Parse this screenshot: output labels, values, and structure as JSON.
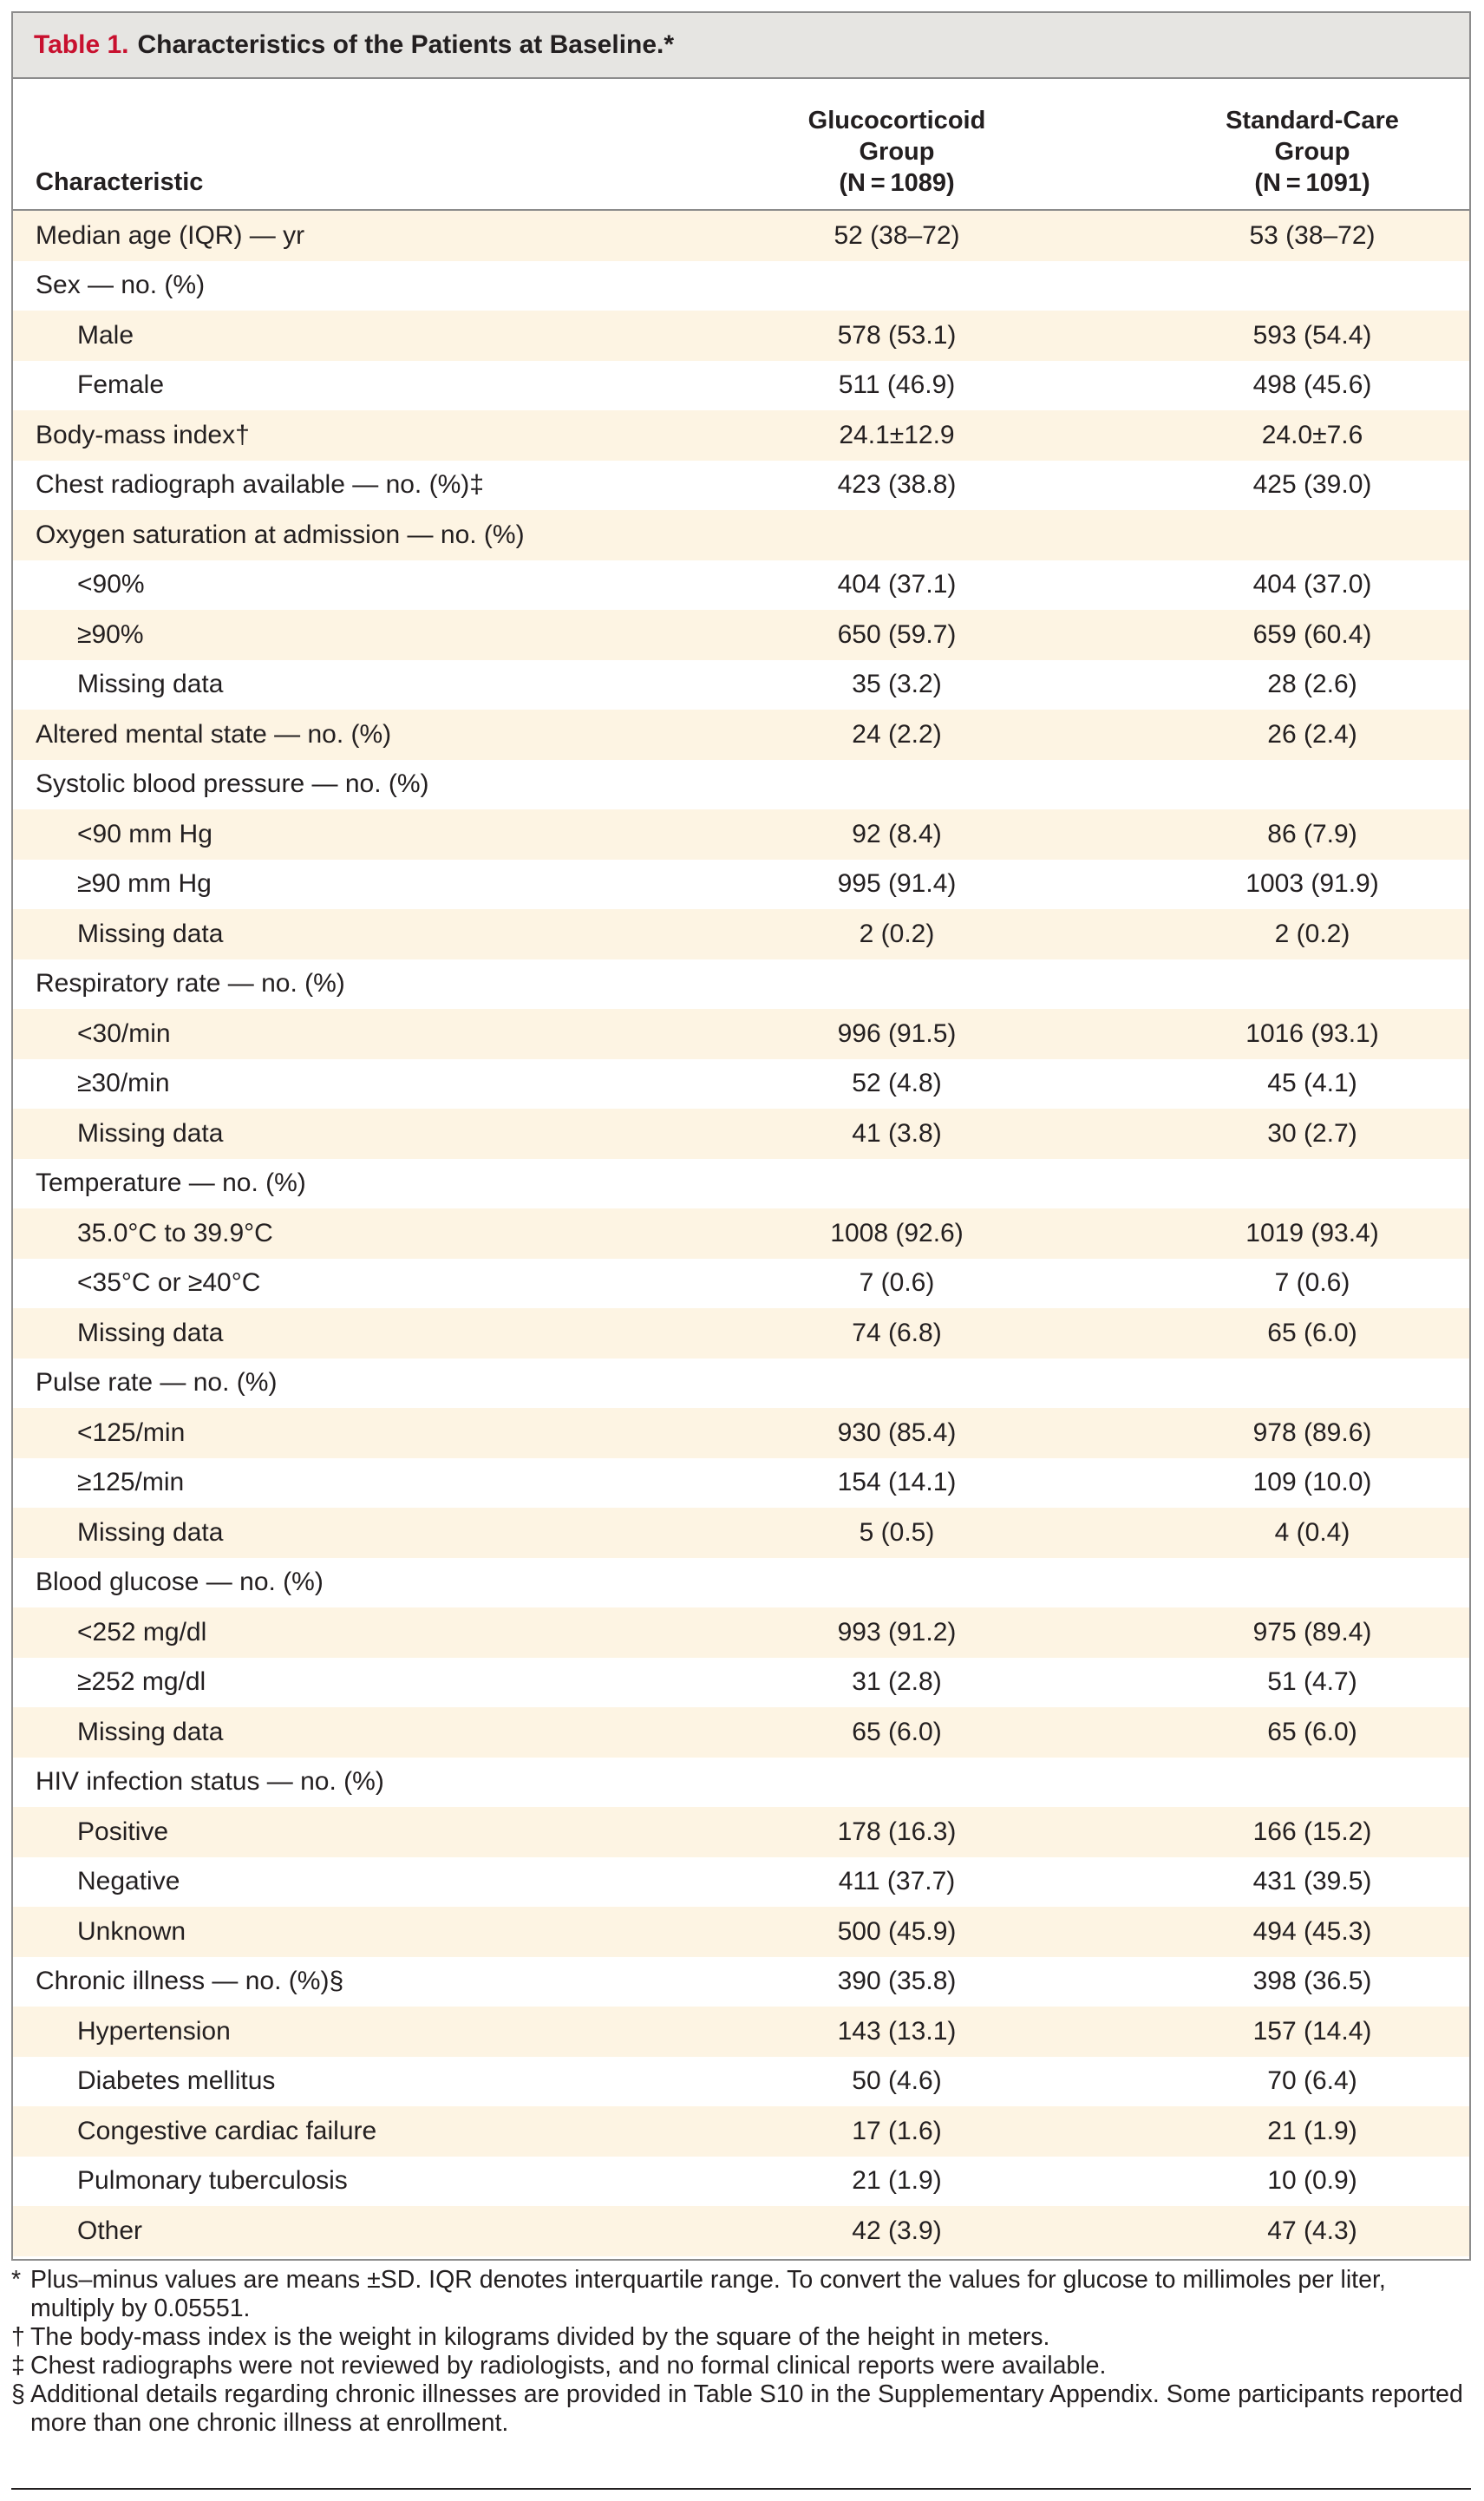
{
  "caption": {
    "label": "Table 1.",
    "title": "Characteristics of the Patients at Baseline.*"
  },
  "header": {
    "characteristic": "Characteristic",
    "group1": [
      "Glucocorticoid",
      "Group",
      "(N = 1089)"
    ],
    "group2": [
      "Standard-Care",
      "Group",
      "(N = 1091)"
    ]
  },
  "rows": [
    {
      "label": "Median age (IQR) — yr",
      "g1": "52 (38–72)",
      "g2": "53 (38–72)",
      "indent": false
    },
    {
      "label": "Sex — no. (%)",
      "g1": "",
      "g2": "",
      "indent": false
    },
    {
      "label": "Male",
      "g1": "578 (53.1)",
      "g2": "593 (54.4)",
      "indent": true
    },
    {
      "label": "Female",
      "g1": "511 (46.9)",
      "g2": "498 (45.6)",
      "indent": true
    },
    {
      "label": "Body-mass index†",
      "g1": "24.1±12.9",
      "g2": "24.0±7.6",
      "indent": false
    },
    {
      "label": "Chest radiograph available — no. (%)‡",
      "g1": "423 (38.8)",
      "g2": "425 (39.0)",
      "indent": false
    },
    {
      "label": "Oxygen saturation at admission — no. (%)",
      "g1": "",
      "g2": "",
      "indent": false
    },
    {
      "label": "<90%",
      "g1": "404 (37.1)",
      "g2": "404 (37.0)",
      "indent": true
    },
    {
      "label": "≥90%",
      "g1": "650 (59.7)",
      "g2": "659 (60.4)",
      "indent": true
    },
    {
      "label": "Missing data",
      "g1": "35 (3.2)",
      "g2": "28 (2.6)",
      "indent": true
    },
    {
      "label": "Altered mental state — no. (%)",
      "g1": "24 (2.2)",
      "g2": "26 (2.4)",
      "indent": false
    },
    {
      "label": "Systolic blood pressure — no. (%)",
      "g1": "",
      "g2": "",
      "indent": false
    },
    {
      "label": "<90 mm Hg",
      "g1": "92 (8.4)",
      "g2": "86 (7.9)",
      "indent": true
    },
    {
      "label": "≥90 mm Hg",
      "g1": "995 (91.4)",
      "g2": "1003 (91.9)",
      "indent": true
    },
    {
      "label": "Missing data",
      "g1": "2 (0.2)",
      "g2": "2 (0.2)",
      "indent": true
    },
    {
      "label": "Respiratory rate — no. (%)",
      "g1": "",
      "g2": "",
      "indent": false
    },
    {
      "label": "<30/min",
      "g1": "996 (91.5)",
      "g2": "1016 (93.1)",
      "indent": true
    },
    {
      "label": "≥30/min",
      "g1": "52 (4.8)",
      "g2": "45 (4.1)",
      "indent": true
    },
    {
      "label": "Missing data",
      "g1": "41 (3.8)",
      "g2": "30 (2.7)",
      "indent": true
    },
    {
      "label": "Temperature — no. (%)",
      "g1": "",
      "g2": "",
      "indent": false
    },
    {
      "label": "35.0°C to 39.9°C",
      "g1": "1008 (92.6)",
      "g2": "1019 (93.4)",
      "indent": true
    },
    {
      "label": "<35°C or ≥40°C",
      "g1": "7 (0.6)",
      "g2": "7 (0.6)",
      "indent": true
    },
    {
      "label": "Missing data",
      "g1": "74 (6.8)",
      "g2": "65 (6.0)",
      "indent": true
    },
    {
      "label": "Pulse rate — no. (%)",
      "g1": "",
      "g2": "",
      "indent": false
    },
    {
      "label": "<125/min",
      "g1": "930 (85.4)",
      "g2": "978 (89.6)",
      "indent": true
    },
    {
      "label": "≥125/min",
      "g1": "154 (14.1)",
      "g2": "109 (10.0)",
      "indent": true
    },
    {
      "label": "Missing data",
      "g1": "5 (0.5)",
      "g2": "4 (0.4)",
      "indent": true
    },
    {
      "label": "Blood glucose — no. (%)",
      "g1": "",
      "g2": "",
      "indent": false
    },
    {
      "label": "<252 mg/dl",
      "g1": "993 (91.2)",
      "g2": "975 (89.4)",
      "indent": true
    },
    {
      "label": "≥252 mg/dl",
      "g1": "31 (2.8)",
      "g2": "51 (4.7)",
      "indent": true
    },
    {
      "label": "Missing data",
      "g1": "65 (6.0)",
      "g2": "65 (6.0)",
      "indent": true
    },
    {
      "label": "HIV infection status — no. (%)",
      "g1": "",
      "g2": "",
      "indent": false
    },
    {
      "label": "Positive",
      "g1": "178 (16.3)",
      "g2": "166 (15.2)",
      "indent": true
    },
    {
      "label": "Negative",
      "g1": "411 (37.7)",
      "g2": "431 (39.5)",
      "indent": true
    },
    {
      "label": "Unknown",
      "g1": "500 (45.9)",
      "g2": "494 (45.3)",
      "indent": true
    },
    {
      "label": "Chronic illness — no. (%)§",
      "g1": "390 (35.8)",
      "g2": "398 (36.5)",
      "indent": false
    },
    {
      "label": "Hypertension",
      "g1": "143 (13.1)",
      "g2": "157 (14.4)",
      "indent": true
    },
    {
      "label": "Diabetes mellitus",
      "g1": "50 (4.6)",
      "g2": "70 (6.4)",
      "indent": true
    },
    {
      "label": "Congestive cardiac failure",
      "g1": "17 (1.6)",
      "g2": "21 (1.9)",
      "indent": true
    },
    {
      "label": "Pulmonary tuberculosis",
      "g1": "21 (1.9)",
      "g2": "10 (0.9)",
      "indent": true
    },
    {
      "label": "Other",
      "g1": "42 (3.9)",
      "g2": "47 (4.3)",
      "indent": true
    }
  ],
  "footnotes": [
    {
      "mark": "*",
      "text": "Plus–minus values are means ±SD. IQR denotes interquartile range. To convert the values for glucose to millimoles per liter, multiply by 0.05551."
    },
    {
      "mark": "†",
      "text": "The body-mass index is the weight in kilograms divided by the square of the height in meters."
    },
    {
      "mark": "‡",
      "text": "Chest radiographs were not reviewed by radiologists, and no formal clinical reports were available."
    },
    {
      "mark": "§",
      "text": "Additional details regarding chronic illnesses are provided in Table S10 in the Supplementary Appendix. Some participants reported more than one chronic illness at enrollment."
    }
  ]
}
